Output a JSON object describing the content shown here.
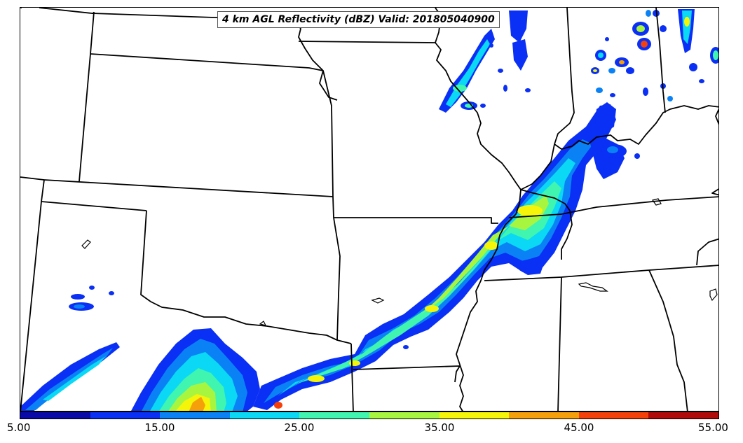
{
  "title": "4 km AGL Reflectivity (dBZ) Valid: 201805040900",
  "colorbar": {
    "ticks": [
      "5.00",
      "15.00",
      "25.00",
      "35.00",
      "45.00",
      "55.00"
    ],
    "colors": [
      "#0a0aa8",
      "#0a2ff5",
      "#0a82f5",
      "#0ad8f5",
      "#40f5b0",
      "#a8f540",
      "#f5f50a",
      "#f5a00a",
      "#f5400a",
      "#b00a0a"
    ]
  },
  "reflectivity_colors": {
    "lvl5": "#0a0aa8",
    "lvl10": "#0a2ff5",
    "lvl15": "#0a82f5",
    "lvl20": "#0ad8f5",
    "lvl25": "#40f5b0",
    "lvl30": "#a8f540",
    "lvl35": "#f5f50a",
    "lvl40": "#f5a00a",
    "lvl45": "#f5400a"
  }
}
